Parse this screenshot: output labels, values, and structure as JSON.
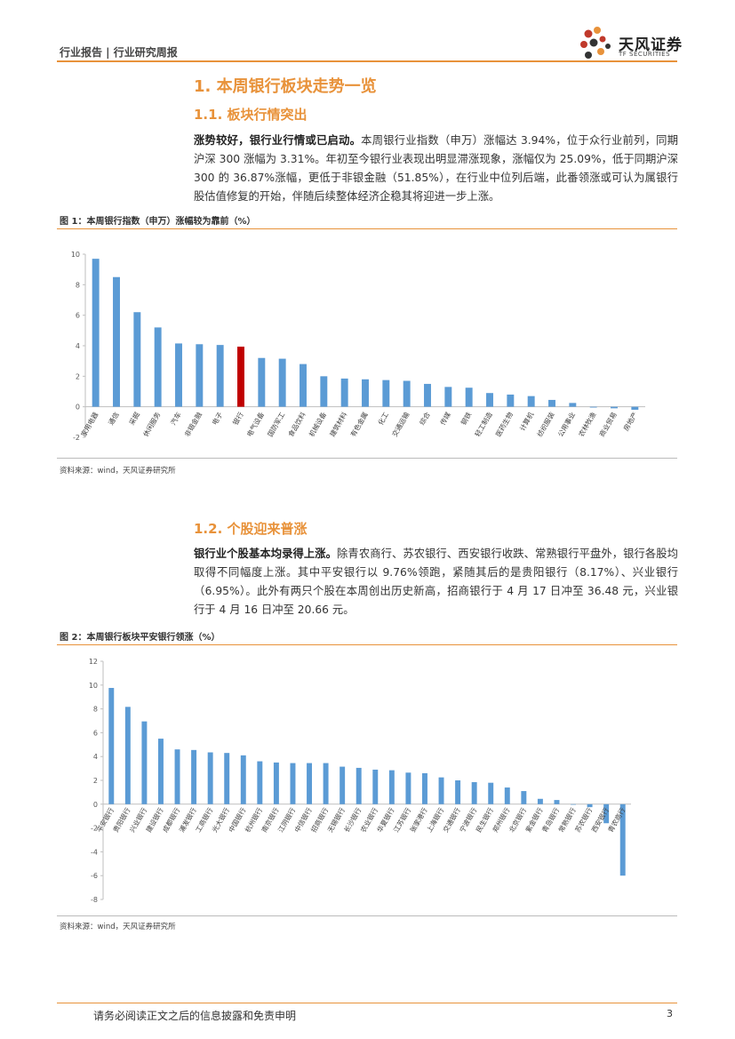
{
  "header": {
    "left": "行业报告 | 行业研究周报",
    "logo_cn": "天风证券",
    "logo_en": "TF SECURITIES",
    "colors": {
      "accent": "#e8923a",
      "logo_red": "#c0392b",
      "logo_dark": "#333333"
    }
  },
  "section1": {
    "title": "1. 本周银行板块走势一览",
    "sub_title": "1.1. 板块行情突出",
    "lead": "涨势较好，银行业行情或已启动。",
    "body": "本周银行业指数（申万）涨幅达 3.94%，位于众行业前列，同期沪深 300 涨幅为 3.31%。年初至今银行业表现出明显滞涨现象，涨幅仅为 25.09%，低于同期沪深 300 的 36.87%涨幅，更低于非银金融（51.85%），在行业中位列后端，此番领涨或可认为属银行股估值修复的开始，伴随后续整体经济企稳其将迎进一步上涨。"
  },
  "figure1": {
    "title": "图 1：本周银行指数（申万）涨幅较为靠前（%）",
    "source": "资料来源：wind，天风证券研究所"
  },
  "section2": {
    "sub_title": "1.2. 个股迎来普涨",
    "lead": "银行业个股基本均录得上涨。",
    "body": "除青农商行、苏农银行、西安银行收跌、常熟银行平盘外，银行各股均取得不同幅度上涨。其中平安银行以 9.76%领跑，紧随其后的是贵阳银行（8.17%）、兴业银行（6.95%）。此外有两只个股在本周创出历史新高，招商银行于 4 月 17 日冲至 36.48 元，兴业银行于 4 月 16 日冲至 20.66 元。"
  },
  "figure2": {
    "title": "图 2：本周银行板块平安银行领涨（%）",
    "source": "资料来源：wind，天风证券研究所"
  },
  "footer": {
    "disclaimer": "请务必阅读正文之后的信息披露和免责申明",
    "page": "3"
  },
  "chart_data": [
    {
      "type": "bar",
      "title": "图 1：本周银行指数（申万）涨幅较为靠前（%）",
      "categories": [
        "家用电器",
        "通信",
        "采掘",
        "休闲服务",
        "汽车",
        "非银金融",
        "电子",
        "银行",
        "电气设备",
        "国防军工",
        "食品饮料",
        "机械设备",
        "建筑材料",
        "有色金属",
        "化工",
        "交通运输",
        "综合",
        "传媒",
        "钢铁",
        "轻工制造",
        "医药生物",
        "计算机",
        "纺织服装",
        "公用事业",
        "农林牧渔",
        "商业贸易",
        "房地产"
      ],
      "values": [
        9.7,
        8.5,
        6.2,
        5.2,
        4.15,
        4.1,
        4.05,
        3.94,
        3.2,
        3.15,
        2.8,
        2.0,
        1.85,
        1.8,
        1.75,
        1.7,
        1.5,
        1.3,
        1.25,
        0.9,
        0.8,
        0.7,
        0.45,
        0.25,
        -0.05,
        -0.1,
        -0.2
      ],
      "highlight_index": 7,
      "ylim": [
        -2,
        10
      ],
      "yticks": [
        -2,
        0,
        2,
        4,
        6,
        8,
        10
      ],
      "colors": {
        "bar": "#5b9bd5",
        "highlight": "#c00000"
      }
    },
    {
      "type": "bar",
      "title": "图 2：本周银行板块平安银行领涨（%）",
      "categories": [
        "平安银行",
        "贵阳银行",
        "兴业银行",
        "建设银行",
        "成都银行",
        "浦发银行",
        "工商银行",
        "光大银行",
        "中国银行",
        "杭州银行",
        "南京银行",
        "江阴银行",
        "中信银行",
        "招商银行",
        "无锡银行",
        "长沙银行",
        "农业银行",
        "华夏银行",
        "江苏银行",
        "张家港行",
        "上海银行",
        "交通银行",
        "宁波银行",
        "民生银行",
        "郑州银行",
        "北京银行",
        "紫金银行",
        "青岛银行",
        "常熟银行",
        "苏农银行",
        "西安银行",
        "青农商行"
      ],
      "values": [
        9.76,
        8.17,
        6.95,
        5.5,
        4.6,
        4.55,
        4.35,
        4.3,
        4.1,
        3.6,
        3.5,
        3.45,
        3.45,
        3.45,
        3.15,
        3.05,
        2.9,
        2.85,
        2.65,
        2.6,
        2.25,
        2.0,
        1.85,
        1.8,
        1.4,
        1.1,
        0.45,
        0.35,
        0.0,
        -0.25,
        -1.6,
        -6.0
      ],
      "ylim": [
        -8,
        12
      ],
      "yticks": [
        -8,
        -6,
        -4,
        -2,
        0,
        2,
        4,
        6,
        8,
        10,
        12
      ],
      "colors": {
        "bar": "#5b9bd5"
      }
    }
  ]
}
